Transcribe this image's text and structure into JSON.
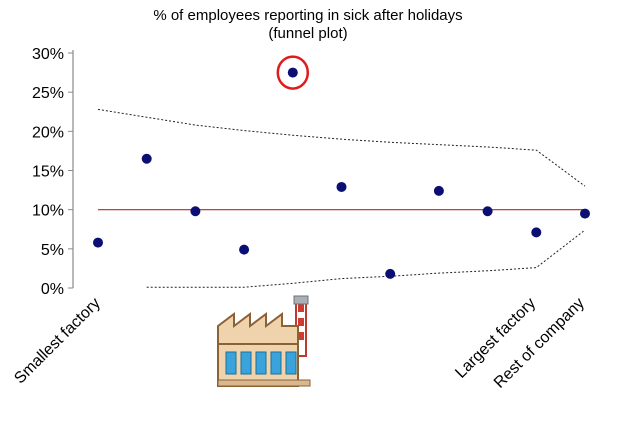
{
  "chart_data": {
    "type": "scatter",
    "title": "% of employees reporting in sick after holidays",
    "subtitle": "(funnel plot)",
    "xlabel": "",
    "ylabel": "",
    "ylim": [
      0,
      30
    ],
    "y_ticks": [
      "30%",
      "25%",
      "20%",
      "15%",
      "10%",
      "5%",
      "0%"
    ],
    "y_tick_values": [
      30,
      25,
      20,
      15,
      10,
      5,
      0
    ],
    "x_positions": [
      1,
      2,
      3,
      4,
      5,
      6,
      7,
      8,
      9,
      10,
      11
    ],
    "x_labels": [
      {
        "x": 1,
        "text": "Smallest factory"
      },
      {
        "x": 10,
        "text": "Largest factory"
      },
      {
        "x": 11,
        "text": "Rest of company"
      }
    ],
    "points": [
      {
        "x": 1,
        "y": 5.8
      },
      {
        "x": 2,
        "y": 16.5
      },
      {
        "x": 3,
        "y": 9.8
      },
      {
        "x": 4,
        "y": 4.9
      },
      {
        "x": 5,
        "y": 27.5,
        "highlight": true
      },
      {
        "x": 6,
        "y": 12.9
      },
      {
        "x": 7,
        "y": 1.8
      },
      {
        "x": 8,
        "y": 12.4
      },
      {
        "x": 9,
        "y": 9.8
      },
      {
        "x": 10,
        "y": 7.1
      },
      {
        "x": 11,
        "y": 9.5
      }
    ],
    "mean_line": {
      "y": 10,
      "x_range": [
        1,
        11
      ]
    },
    "upper_limit": [
      [
        1,
        22.8
      ],
      [
        2,
        21.8
      ],
      [
        3,
        20.8
      ],
      [
        4,
        20.1
      ],
      [
        5,
        19.5
      ],
      [
        6,
        19.0
      ],
      [
        7,
        18.6
      ],
      [
        8,
        18.3
      ],
      [
        9,
        18.0
      ],
      [
        10,
        17.6
      ],
      [
        11,
        13.0
      ]
    ],
    "lower_limit": [
      [
        2,
        0.1
      ],
      [
        3,
        0.1
      ],
      [
        4,
        0.1
      ],
      [
        5,
        0.6
      ],
      [
        6,
        1.2
      ],
      [
        7,
        1.5
      ],
      [
        8,
        1.9
      ],
      [
        9,
        2.2
      ],
      [
        10,
        2.6
      ],
      [
        11,
        7.4
      ]
    ],
    "grid": false,
    "legend": "none",
    "colors": {
      "point": "#0b0f73",
      "mean_line": "#b52a2a",
      "limit_lines": "#222222",
      "highlight_ring": "#e11b1b",
      "axis": "#8a8a8a"
    },
    "decoration_icon": "factory-icon"
  }
}
